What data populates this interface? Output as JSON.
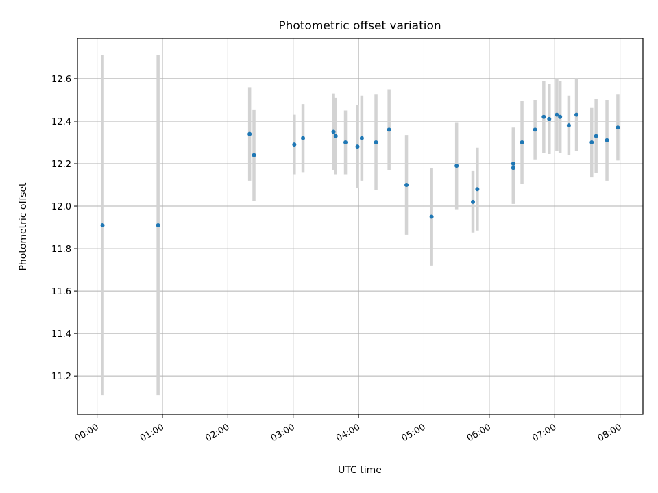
{
  "chart_data": {
    "type": "scatter",
    "title": "Photometric offset variation",
    "xlabel": "UTC time",
    "ylabel": "Photometric offset",
    "x_unit": "hours (UTC)",
    "xlim": [
      "-00:18",
      "08:21"
    ],
    "ylim": [
      11.02,
      12.79
    ],
    "grid": true,
    "x_ticks": [
      "00:00",
      "01:00",
      "02:00",
      "03:00",
      "04:00",
      "05:00",
      "06:00",
      "07:00",
      "08:00"
    ],
    "y_ticks": [
      "11.2",
      "11.4",
      "11.6",
      "11.8",
      "12.0",
      "12.2",
      "12.4",
      "12.6"
    ],
    "colors": {
      "marker": "#1f77b4",
      "errorbar": "#d3d3d3",
      "grid": "#b0b0b0"
    },
    "points": [
      {
        "time": "00:05",
        "y": 11.91,
        "err": 0.8
      },
      {
        "time": "00:56",
        "y": 11.91,
        "err": 0.8
      },
      {
        "time": "02:20",
        "y": 12.34,
        "err": 0.22
      },
      {
        "time": "02:24",
        "y": 12.24,
        "err": 0.215
      },
      {
        "time": "03:01",
        "y": 12.29,
        "err": 0.14
      },
      {
        "time": "03:09",
        "y": 12.32,
        "err": 0.16
      },
      {
        "time": "03:37",
        "y": 12.35,
        "err": 0.18
      },
      {
        "time": "03:39",
        "y": 12.33,
        "err": 0.18
      },
      {
        "time": "03:48",
        "y": 12.3,
        "err": 0.15
      },
      {
        "time": "03:59",
        "y": 12.28,
        "err": 0.195
      },
      {
        "time": "04:03",
        "y": 12.32,
        "err": 0.2
      },
      {
        "time": "04:16",
        "y": 12.3,
        "err": 0.225
      },
      {
        "time": "04:28",
        "y": 12.36,
        "err": 0.19
      },
      {
        "time": "04:44",
        "y": 12.1,
        "err": 0.235
      },
      {
        "time": "05:07",
        "y": 11.95,
        "err": 0.23
      },
      {
        "time": "05:30",
        "y": 12.19,
        "err": 0.205
      },
      {
        "time": "05:45",
        "y": 12.02,
        "err": 0.145
      },
      {
        "time": "05:49",
        "y": 12.08,
        "err": 0.195
      },
      {
        "time": "06:22",
        "y": 12.2,
        "err": 0.17
      },
      {
        "time": "06:22",
        "y": 12.18,
        "err": 0.17
      },
      {
        "time": "06:30",
        "y": 12.3,
        "err": 0.195
      },
      {
        "time": "06:42",
        "y": 12.36,
        "err": 0.14
      },
      {
        "time": "06:50",
        "y": 12.42,
        "err": 0.17
      },
      {
        "time": "06:55",
        "y": 12.41,
        "err": 0.165
      },
      {
        "time": "07:02",
        "y": 12.43,
        "err": 0.17
      },
      {
        "time": "07:05",
        "y": 12.42,
        "err": 0.17
      },
      {
        "time": "07:13",
        "y": 12.38,
        "err": 0.14
      },
      {
        "time": "07:20",
        "y": 12.43,
        "err": 0.17
      },
      {
        "time": "07:34",
        "y": 12.3,
        "err": 0.165
      },
      {
        "time": "07:38",
        "y": 12.33,
        "err": 0.175
      },
      {
        "time": "07:48",
        "y": 12.31,
        "err": 0.19
      },
      {
        "time": "07:58",
        "y": 12.37,
        "err": 0.155
      }
    ]
  }
}
